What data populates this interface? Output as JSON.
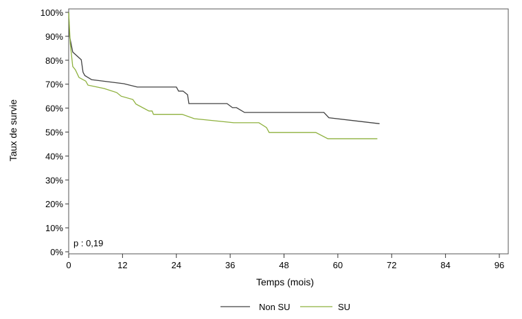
{
  "chart_data": {
    "type": "line",
    "title": "",
    "xlabel": "Temps (mois)",
    "ylabel": "Taux de survie",
    "xlim": [
      0,
      96
    ],
    "ylim": [
      0,
      100
    ],
    "xticks": [
      "0",
      "12",
      "24",
      "36",
      "48",
      "60",
      "72",
      "84",
      "96"
    ],
    "yticks": [
      "0%",
      "10%",
      "20%",
      "30%",
      "40%",
      "50%",
      "60%",
      "70%",
      "80%",
      "90%",
      "100%"
    ],
    "grid": false,
    "legend_position": "bottom",
    "annotation": "p : 0,19",
    "series": [
      {
        "name": "Non SU",
        "color": "#404040",
        "x": [
          0,
          0.2,
          0.9,
          2.8,
          3.2,
          3.6,
          5.1,
          12.3,
          15.3,
          24,
          24.5,
          25.5,
          26.5,
          26.8,
          35.3,
          36.5,
          37.4,
          39.2,
          56.9,
          58,
          69.3
        ],
        "y": [
          100,
          90,
          83.4,
          80.2,
          75,
          73.6,
          71.9,
          70.2,
          68.8,
          68.8,
          67.1,
          67.1,
          65.6,
          61.9,
          61.9,
          60.2,
          60.2,
          58.2,
          58.2,
          56,
          53.5
        ]
      },
      {
        "name": "SU",
        "color": "#8db03c",
        "x": [
          0,
          0.35,
          0.9,
          1.5,
          2.3,
          3.8,
          4.3,
          7.9,
          10.7,
          11.7,
          14.3,
          15,
          17.9,
          18.6,
          18.9,
          25.3,
          28,
          36.8,
          42.4,
          44.1,
          44.7,
          55.1,
          57.8,
          68.8
        ],
        "y": [
          100,
          87,
          77.4,
          76,
          72.8,
          71.3,
          69.6,
          68.2,
          66.5,
          65,
          63.6,
          61.7,
          58.8,
          58.8,
          57.4,
          57.4,
          55.6,
          53.9,
          53.9,
          51.9,
          49.8,
          49.8,
          47.2,
          47.2
        ]
      }
    ]
  }
}
